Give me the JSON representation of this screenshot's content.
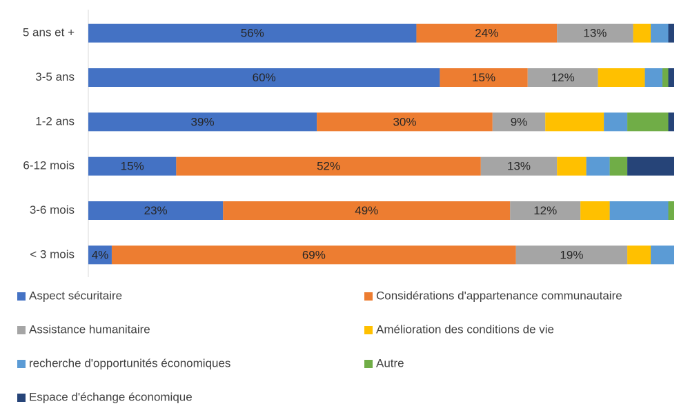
{
  "chart_data": {
    "type": "stacked-bar-horizontal",
    "categories": [
      "5 ans et +",
      "3-5 ans",
      "1-2 ans",
      "6-12 mois",
      "3-6 mois",
      "< 3 mois"
    ],
    "xlim": [
      0,
      100
    ],
    "legend": "bottom",
    "series": [
      {
        "name": "Aspect sécuritaire",
        "color": "#4472c4",
        "values": [
          56,
          60,
          39,
          15,
          23,
          4
        ],
        "value_labels": [
          "56%",
          "60%",
          "39%",
          "15%",
          "23%",
          "4%"
        ]
      },
      {
        "name": "Considérations d'appartenance communautaire",
        "color": "#ed7d31",
        "values": [
          24,
          15,
          30,
          52,
          49,
          69
        ],
        "value_labels": [
          "24%",
          "15%",
          "30%",
          "52%",
          "49%",
          "69%"
        ]
      },
      {
        "name": "Assistance humanitaire",
        "color": "#a5a5a5",
        "values": [
          13,
          12,
          9,
          13,
          12,
          19
        ],
        "value_labels": [
          "13%",
          "12%",
          "9%",
          "13%",
          "12%",
          "19%"
        ]
      },
      {
        "name": "Amélioration des conditions de vie",
        "color": "#ffc000",
        "values": [
          3,
          8,
          10,
          5,
          5,
          4
        ]
      },
      {
        "name": "recherche d'opportunités économiques",
        "color": "#5b9bd5",
        "values": [
          3,
          3,
          4,
          4,
          10,
          4
        ]
      },
      {
        "name": "Autre",
        "color": "#70ad47",
        "values": [
          0,
          1,
          7,
          3,
          1,
          0
        ]
      },
      {
        "name": "Espace d'échange économique",
        "color": "#264478",
        "values": [
          1,
          1,
          1,
          8,
          0,
          0
        ]
      }
    ]
  }
}
